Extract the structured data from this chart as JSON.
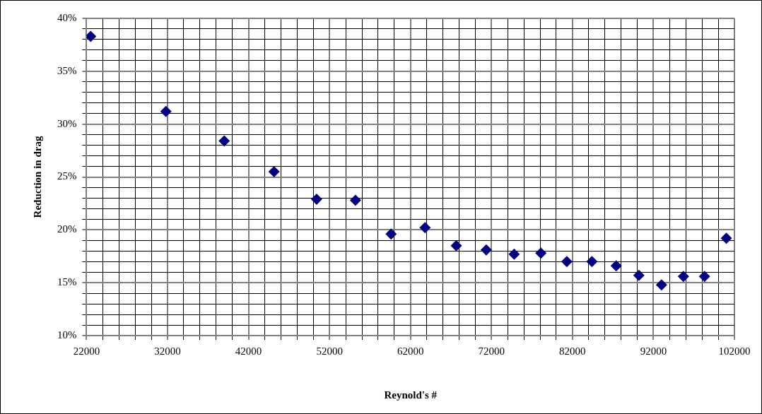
{
  "chart_data": {
    "type": "scatter",
    "xlabel": "Reynold's #",
    "ylabel": "Reduction in drag",
    "x": [
      22500,
      31800,
      39000,
      45150,
      50400,
      55200,
      59600,
      63800,
      67650,
      71350,
      74800,
      78100,
      81300,
      84400,
      87400,
      90200,
      93000,
      95700,
      98300,
      101000
    ],
    "series": [
      {
        "color": "#000080",
        "values": [
          38.3,
          31.2,
          28.4,
          25.5,
          22.9,
          22.8,
          19.6,
          20.2,
          18.5,
          18.1,
          17.7,
          17.8,
          17.0,
          17.0,
          16.6,
          15.7,
          14.8,
          15.6,
          15.6,
          19.2
        ]
      }
    ],
    "marker": "diamond",
    "grid": true,
    "legend": false,
    "xlim": [
      22000,
      102000
    ],
    "xticks": [
      22000,
      {
        "value": 24000,
        "label": null
      },
      {
        "value": 26000,
        "label": null
      },
      {
        "value": 28000,
        "label": null
      },
      {
        "value": 30000,
        "label": null
      },
      32000,
      {
        "value": 34000,
        "label": null
      },
      {
        "value": 36000,
        "label": null
      },
      {
        "value": 38000,
        "label": null
      },
      {
        "value": 40000,
        "label": null
      },
      42000,
      {
        "value": 44000,
        "label": null
      },
      {
        "value": 46000,
        "label": null
      },
      {
        "value": 48000,
        "label": null
      },
      {
        "value": 50000,
        "label": null
      },
      52000,
      {
        "value": 54000,
        "label": null
      },
      {
        "value": 56000,
        "label": null
      },
      {
        "value": 58000,
        "label": null
      },
      {
        "value": 60000,
        "label": null
      },
      62000,
      {
        "value": 64000,
        "label": null
      },
      {
        "value": 66000,
        "label": null
      },
      {
        "value": 68000,
        "label": null
      },
      {
        "value": 70000,
        "label": null
      },
      72000,
      {
        "value": 74000,
        "label": null
      },
      {
        "value": 76000,
        "label": null
      },
      {
        "value": 78000,
        "label": null
      },
      {
        "value": 80000,
        "label": null
      },
      82000,
      {
        "value": 84000,
        "label": null
      },
      {
        "value": 86000,
        "label": null
      },
      {
        "value": 88000,
        "label": null
      },
      {
        "value": 90000,
        "label": null
      },
      92000,
      {
        "value": 94000,
        "label": null
      },
      {
        "value": 96000,
        "label": null
      },
      {
        "value": 98000,
        "label": null
      },
      {
        "value": 100000,
        "label": null
      },
      102000
    ],
    "ylim": [
      10,
      40
    ],
    "yticks": [
      {
        "value": 10,
        "label": "10%"
      },
      {
        "value": 11,
        "label": null
      },
      {
        "value": 12,
        "label": null
      },
      {
        "value": 13,
        "label": null
      },
      {
        "value": 14,
        "label": null
      },
      {
        "value": 15,
        "label": "15%"
      },
      {
        "value": 16,
        "label": null
      },
      {
        "value": 17,
        "label": null
      },
      {
        "value": 18,
        "label": null
      },
      {
        "value": 19,
        "label": null
      },
      {
        "value": 20,
        "label": "20%"
      },
      {
        "value": 21,
        "label": null
      },
      {
        "value": 22,
        "label": null
      },
      {
        "value": 23,
        "label": null
      },
      {
        "value": 24,
        "label": null
      },
      {
        "value": 25,
        "label": "25%"
      },
      {
        "value": 26,
        "label": null
      },
      {
        "value": 27,
        "label": null
      },
      {
        "value": 28,
        "label": null
      },
      {
        "value": 29,
        "label": null
      },
      {
        "value": 30,
        "label": "30%"
      },
      {
        "value": 31,
        "label": null
      },
      {
        "value": 32,
        "label": null
      },
      {
        "value": 33,
        "label": null
      },
      {
        "value": 34,
        "label": null
      },
      {
        "value": 35,
        "label": "35%"
      },
      {
        "value": 36,
        "label": null
      },
      {
        "value": 37,
        "label": null
      },
      {
        "value": 38,
        "label": null
      },
      {
        "value": 39,
        "label": null
      },
      {
        "value": 40,
        "label": "40%"
      }
    ]
  }
}
